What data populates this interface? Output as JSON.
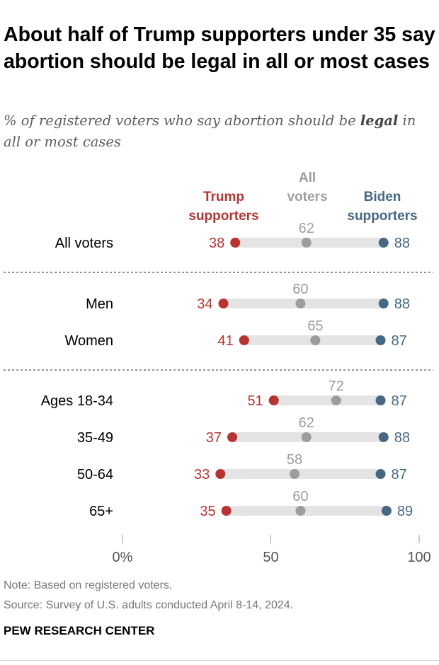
{
  "title": "About half of Trump supporters under 35 say abortion should be legal in all or most cases",
  "subtitle_pre": "% of registered voters who say abortion should be ",
  "subtitle_bold": "legal",
  "subtitle_post": " in all or most cases",
  "note": "Note: Based on registered voters.",
  "source": "Source: Survey of U.S. adults conducted April 8-14, 2024.",
  "brand": "PEW RESEARCH CENTER",
  "colors": {
    "trump": "#bb3330",
    "all": "#9d9d9d",
    "biden": "#456884",
    "bar": "#e4e4e4"
  },
  "chart_data": {
    "type": "dot",
    "title": "About half of Trump supporters under 35 say abortion should be legal in all or most cases",
    "subtitle": "% of registered voters who say abortion should be legal in all or most cases",
    "xlim": [
      0,
      100
    ],
    "xticks": [
      "0%",
      "50",
      "100"
    ],
    "xtick_values": [
      0,
      50,
      100
    ],
    "legend": [
      {
        "key": "trump",
        "lines": [
          "Trump",
          "supporters"
        ]
      },
      {
        "key": "all",
        "lines": [
          "All",
          "voters"
        ]
      },
      {
        "key": "biden",
        "lines": [
          "Biden",
          "supporters"
        ]
      }
    ],
    "groups": [
      [
        {
          "label": "All voters",
          "trump": 38,
          "all": 62,
          "biden": 88
        }
      ],
      [
        {
          "label": "Men",
          "trump": 34,
          "all": 60,
          "biden": 88
        },
        {
          "label": "Women",
          "trump": 41,
          "all": 65,
          "biden": 87
        }
      ],
      [
        {
          "label": "Ages 18-34",
          "trump": 51,
          "all": 72,
          "biden": 87
        },
        {
          "label": "35-49",
          "trump": 37,
          "all": 62,
          "biden": 88
        },
        {
          "label": "50-64",
          "trump": 33,
          "all": 58,
          "biden": 87
        },
        {
          "label": "65+",
          "trump": 35,
          "all": 60,
          "biden": 89
        }
      ]
    ]
  }
}
